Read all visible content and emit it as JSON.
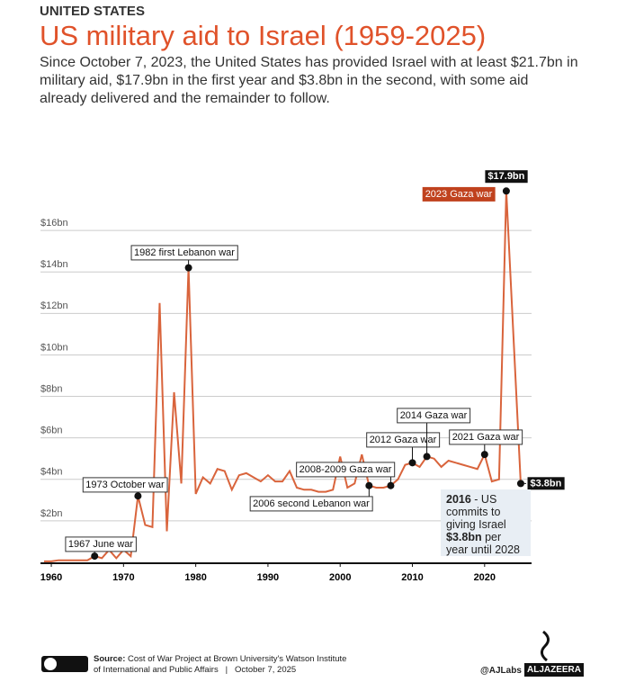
{
  "chart_data": {
    "type": "line",
    "kicker": "UNITED STATES",
    "title": "US military aid to Israel (1959-2025)",
    "subtitle": "Since October 7, 2023, the United States has provided Israel with at least $21.7bn in military aid, $17.9bn in the first year and $3.8bn in the second, with some aid already delivered and the remainder to follow.",
    "x": [
      1959,
      1960,
      1961,
      1962,
      1963,
      1964,
      1965,
      1966,
      1967,
      1968,
      1969,
      1970,
      1971,
      1972,
      1973,
      1974,
      1975,
      1976,
      1977,
      1978,
      1979,
      1980,
      1981,
      1982,
      1983,
      1984,
      1985,
      1986,
      1987,
      1988,
      1989,
      1990,
      1991,
      1992,
      1993,
      1994,
      1995,
      1996,
      1997,
      1998,
      1999,
      2000,
      2001,
      2002,
      2003,
      2004,
      2005,
      2006,
      2007,
      2008,
      2009,
      2010,
      2011,
      2012,
      2013,
      2014,
      2015,
      2016,
      2017,
      2018,
      2019,
      2020,
      2021,
      2022,
      2023,
      2025
    ],
    "series": [
      {
        "name": "Military aid",
        "color": "#d9643c",
        "values": [
          0.05,
          0.05,
          0.1,
          0.1,
          0.1,
          0.1,
          0.1,
          0.3,
          0.2,
          0.6,
          0.2,
          0.6,
          0.3,
          3.2,
          1.8,
          1.7,
          12.5,
          1.5,
          8.2,
          3.8,
          14.2,
          3.3,
          4.1,
          3.8,
          4.5,
          4.4,
          3.5,
          4.2,
          4.3,
          4.1,
          3.9,
          4.2,
          3.9,
          3.9,
          4.4,
          3.6,
          3.5,
          3.5,
          3.4,
          3.4,
          3.5,
          5.1,
          3.6,
          3.8,
          5.2,
          3.7,
          3.6,
          3.6,
          3.7,
          4.0,
          4.7,
          4.8,
          4.6,
          5.1,
          5.0,
          4.6,
          4.9,
          4.8,
          4.7,
          4.6,
          4.5,
          5.2,
          3.9,
          4.0,
          17.9,
          3.8
        ],
        "value_labels": [
          null,
          null,
          null,
          null,
          null,
          null,
          null,
          null,
          null,
          null,
          null,
          null,
          null,
          null,
          null,
          null,
          null,
          null,
          null,
          null,
          null,
          null,
          null,
          null,
          null,
          null,
          null,
          null,
          null,
          null,
          null,
          null,
          null,
          null,
          null,
          null,
          null,
          null,
          null,
          null,
          null,
          null,
          null,
          null,
          null,
          null,
          null,
          null,
          null,
          null,
          null,
          null,
          null,
          null,
          null,
          null,
          null,
          null,
          null,
          null,
          null,
          null,
          null,
          null,
          "$17.9bn",
          "$3.8bn"
        ]
      }
    ],
    "xlim": [
      1958.5,
      2026.5
    ],
    "xticks": [
      1960,
      1970,
      1980,
      1990,
      2000,
      2010,
      2020
    ],
    "ylim": [
      0,
      18
    ],
    "yticks": [
      {
        "value": 2,
        "label": "$2bn"
      },
      {
        "value": 4,
        "label": "$4bn"
      },
      {
        "value": 6,
        "label": "$6bn"
      },
      {
        "value": 8,
        "label": "$8bn"
      },
      {
        "value": 10,
        "label": "$10bn"
      },
      {
        "value": 12,
        "label": "$12bn"
      },
      {
        "value": 14,
        "label": "$14bn"
      },
      {
        "value": 16,
        "label": "$16bn"
      }
    ],
    "grid": true,
    "annotations": [
      {
        "text": "1967 June war",
        "x": 1966
      },
      {
        "text": "1973 October war",
        "x": 1972
      },
      {
        "text": "1982 first Lebanon war",
        "x": 1979
      },
      {
        "text": "2006 second Lebanon war",
        "x": 2004
      },
      {
        "text": "2008-2009 Gaza war",
        "x": 2007
      },
      {
        "text": "2012 Gaza war",
        "x": 2010
      },
      {
        "text": "2014 Gaza war",
        "x": 2012
      },
      {
        "text": "2021 Gaza war",
        "x": 2020
      },
      {
        "text": "2023 Gaza war",
        "x": 2023,
        "color": "#c0421e"
      }
    ],
    "note": [
      "2016",
      " - US commits to giving Israel ",
      "$3.8bn",
      " per year until 2028"
    ],
    "source_label": "Source:",
    "source": "Cost of War Project at Brown University's Watson Institute",
    "source_2": "of International and Public Affairs",
    "date": "October 7, 2025",
    "handle": "@AJLabs",
    "brand": "ALJAZEERA"
  }
}
